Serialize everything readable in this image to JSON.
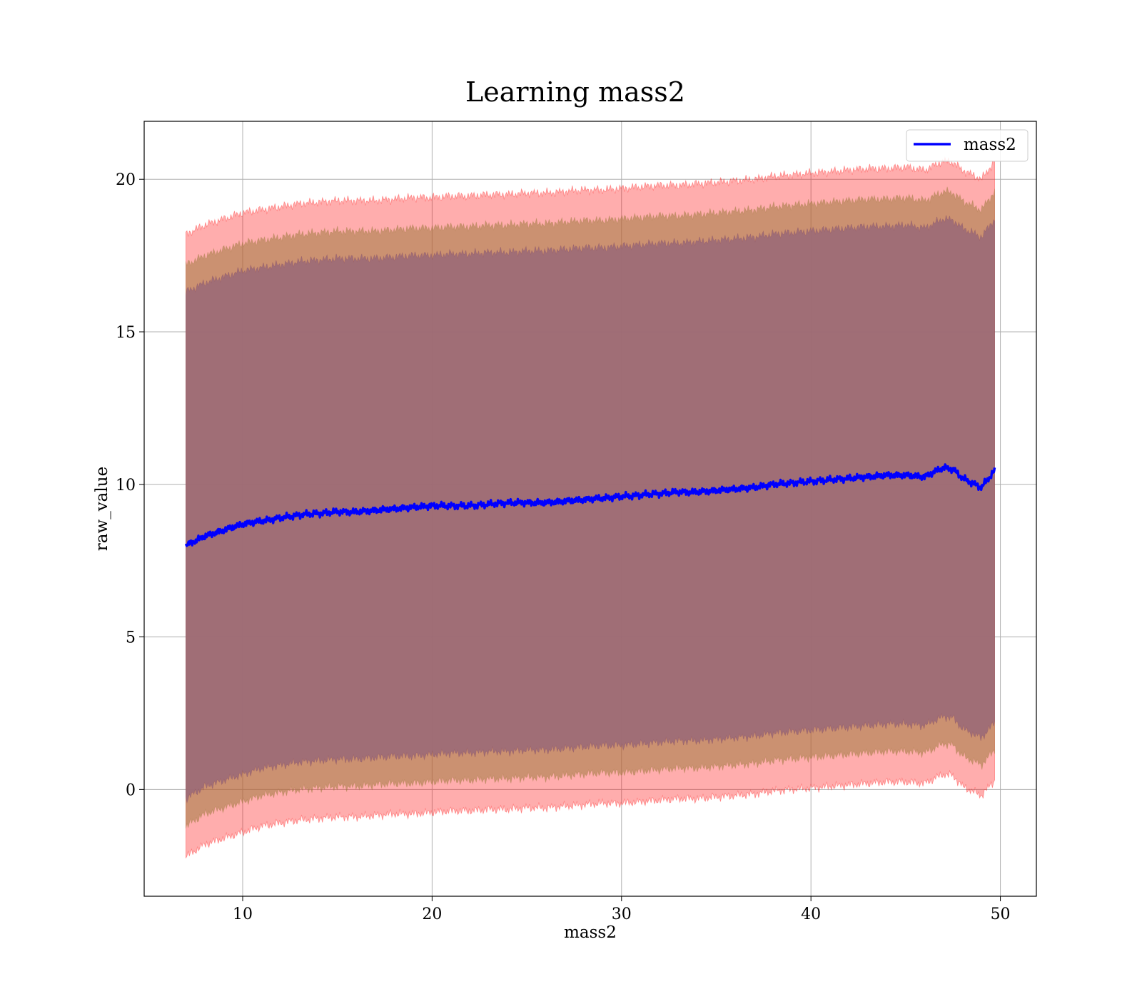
{
  "chart_data": {
    "type": "line",
    "title": "Learning mass2",
    "xlabel": "mass2",
    "ylabel": "raw_value",
    "xlim": [
      4.8,
      51.9
    ],
    "ylim": [
      -3.5,
      21.9
    ],
    "xticks": [
      10,
      20,
      30,
      40,
      50
    ],
    "yticks": [
      0,
      5,
      10,
      15,
      20
    ],
    "grid": true,
    "legend": {
      "position": "top-right",
      "entries": [
        "mass2"
      ]
    },
    "colors": {
      "line": "#0000ff",
      "band_outer": "#ff0000",
      "band_middle": "#8b6a3a",
      "band_inner": "#5a2a5a"
    },
    "series": [
      {
        "name": "mass2",
        "x": [
          7.0,
          8.0,
          9.0,
          10.0,
          11.0,
          12.0,
          13.0,
          14.0,
          15.0,
          16.0,
          17.0,
          18.0,
          19.0,
          20.0,
          21.0,
          22.0,
          23.0,
          24.0,
          25.0,
          26.0,
          27.0,
          28.0,
          29.0,
          30.0,
          31.0,
          32.0,
          33.0,
          34.0,
          35.0,
          36.0,
          37.0,
          38.0,
          39.0,
          40.0,
          41.0,
          42.0,
          43.0,
          44.0,
          45.0,
          46.0,
          47.0,
          47.5,
          48.0,
          49.0,
          49.7
        ],
        "y": [
          8.0,
          8.3,
          8.5,
          8.7,
          8.8,
          8.9,
          9.0,
          9.05,
          9.1,
          9.1,
          9.15,
          9.2,
          9.25,
          9.3,
          9.3,
          9.3,
          9.35,
          9.4,
          9.4,
          9.4,
          9.45,
          9.5,
          9.55,
          9.6,
          9.65,
          9.7,
          9.75,
          9.75,
          9.8,
          9.85,
          9.9,
          10.0,
          10.05,
          10.1,
          10.15,
          10.2,
          10.25,
          10.3,
          10.3,
          10.25,
          10.55,
          10.5,
          10.2,
          9.9,
          10.45
        ]
      }
    ],
    "bands": [
      {
        "level": "outer",
        "x": [
          7.0,
          8.0,
          9.0,
          10.0,
          11.0,
          12.0,
          13.0,
          14.0,
          15.0,
          16.0,
          17.0,
          18.0,
          19.0,
          20.0,
          21.0,
          22.0,
          23.0,
          24.0,
          25.0,
          26.0,
          27.0,
          28.0,
          29.0,
          30.0,
          31.0,
          32.0,
          33.0,
          34.0,
          35.0,
          36.0,
          37.0,
          38.0,
          39.0,
          40.0,
          41.0,
          42.0,
          43.0,
          44.0,
          45.0,
          46.0,
          47.0,
          47.5,
          48.0,
          49.0,
          49.7
        ],
        "upper": [
          18.2,
          18.5,
          18.7,
          18.9,
          19.0,
          19.1,
          19.2,
          19.25,
          19.3,
          19.3,
          19.3,
          19.35,
          19.4,
          19.4,
          19.45,
          19.45,
          19.5,
          19.5,
          19.55,
          19.55,
          19.6,
          19.65,
          19.65,
          19.7,
          19.75,
          19.8,
          19.8,
          19.85,
          19.9,
          19.95,
          20.0,
          20.1,
          20.15,
          20.2,
          20.25,
          20.3,
          20.35,
          20.35,
          20.4,
          20.3,
          20.6,
          20.55,
          20.3,
          20.0,
          20.6
        ],
        "lower": [
          -2.2,
          -1.8,
          -1.6,
          -1.4,
          -1.2,
          -1.1,
          -1.0,
          -0.95,
          -0.9,
          -0.9,
          -0.85,
          -0.8,
          -0.8,
          -0.75,
          -0.7,
          -0.7,
          -0.65,
          -0.65,
          -0.6,
          -0.6,
          -0.55,
          -0.5,
          -0.45,
          -0.45,
          -0.4,
          -0.35,
          -0.3,
          -0.3,
          -0.25,
          -0.2,
          -0.15,
          -0.05,
          0.0,
          0.05,
          0.1,
          0.15,
          0.2,
          0.25,
          0.25,
          0.2,
          0.5,
          0.45,
          0.1,
          -0.2,
          0.3
        ]
      },
      {
        "level": "middle",
        "x": [
          7.0,
          8.0,
          9.0,
          10.0,
          11.0,
          12.0,
          13.0,
          14.0,
          15.0,
          16.0,
          17.0,
          18.0,
          19.0,
          20.0,
          21.0,
          22.0,
          23.0,
          24.0,
          25.0,
          26.0,
          27.0,
          28.0,
          29.0,
          30.0,
          31.0,
          32.0,
          33.0,
          34.0,
          35.0,
          36.0,
          37.0,
          38.0,
          39.0,
          40.0,
          41.0,
          42.0,
          43.0,
          44.0,
          45.0,
          46.0,
          47.0,
          47.5,
          48.0,
          49.0,
          49.7
        ],
        "upper": [
          17.2,
          17.5,
          17.7,
          17.9,
          18.0,
          18.1,
          18.2,
          18.25,
          18.3,
          18.3,
          18.3,
          18.35,
          18.4,
          18.4,
          18.45,
          18.45,
          18.5,
          18.5,
          18.55,
          18.55,
          18.6,
          18.65,
          18.65,
          18.7,
          18.75,
          18.8,
          18.8,
          18.85,
          18.9,
          18.95,
          19.0,
          19.1,
          19.15,
          19.2,
          19.25,
          19.3,
          19.35,
          19.35,
          19.4,
          19.3,
          19.6,
          19.55,
          19.3,
          19.0,
          19.6
        ],
        "lower": [
          -1.2,
          -0.8,
          -0.6,
          -0.4,
          -0.2,
          -0.1,
          0.0,
          0.05,
          0.1,
          0.1,
          0.15,
          0.2,
          0.2,
          0.25,
          0.3,
          0.3,
          0.35,
          0.35,
          0.4,
          0.4,
          0.45,
          0.5,
          0.55,
          0.55,
          0.6,
          0.65,
          0.7,
          0.7,
          0.75,
          0.8,
          0.85,
          0.95,
          1.0,
          1.05,
          1.1,
          1.15,
          1.2,
          1.25,
          1.25,
          1.2,
          1.5,
          1.45,
          1.1,
          0.8,
          1.3
        ]
      },
      {
        "level": "inner",
        "x": [
          7.0,
          8.0,
          9.0,
          10.0,
          11.0,
          12.0,
          13.0,
          14.0,
          15.0,
          16.0,
          17.0,
          18.0,
          19.0,
          20.0,
          21.0,
          22.0,
          23.0,
          24.0,
          25.0,
          26.0,
          27.0,
          28.0,
          29.0,
          30.0,
          31.0,
          32.0,
          33.0,
          34.0,
          35.0,
          36.0,
          37.0,
          38.0,
          39.0,
          40.0,
          41.0,
          42.0,
          43.0,
          44.0,
          45.0,
          46.0,
          47.0,
          47.5,
          48.0,
          49.0,
          49.7
        ],
        "upper": [
          16.3,
          16.6,
          16.8,
          17.0,
          17.1,
          17.2,
          17.3,
          17.35,
          17.4,
          17.4,
          17.4,
          17.45,
          17.5,
          17.5,
          17.55,
          17.55,
          17.6,
          17.6,
          17.65,
          17.65,
          17.7,
          17.75,
          17.75,
          17.8,
          17.85,
          17.9,
          17.9,
          17.95,
          18.0,
          18.05,
          18.1,
          18.2,
          18.25,
          18.3,
          18.35,
          18.4,
          18.45,
          18.45,
          18.5,
          18.4,
          18.7,
          18.65,
          18.4,
          18.1,
          18.7
        ],
        "lower": [
          -0.3,
          0.1,
          0.3,
          0.5,
          0.7,
          0.8,
          0.9,
          0.95,
          1.0,
          1.0,
          1.05,
          1.1,
          1.1,
          1.15,
          1.2,
          1.2,
          1.25,
          1.25,
          1.3,
          1.3,
          1.35,
          1.4,
          1.45,
          1.45,
          1.5,
          1.55,
          1.6,
          1.6,
          1.65,
          1.7,
          1.75,
          1.85,
          1.9,
          1.95,
          2.0,
          2.05,
          2.1,
          2.15,
          2.15,
          2.1,
          2.4,
          2.35,
          2.0,
          1.7,
          2.2
        ]
      }
    ]
  }
}
